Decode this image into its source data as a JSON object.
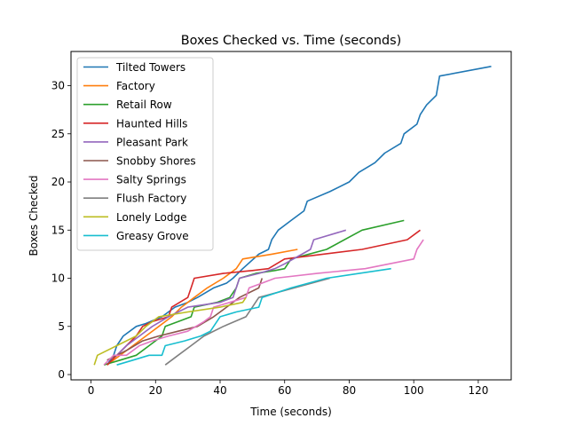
{
  "chart_data": {
    "type": "line",
    "title": "Boxes Checked vs. Time (seconds)",
    "xlabel": "Time (seconds)",
    "ylabel": "Boxes Checked",
    "xlim": [
      -6.2,
      130.2
    ],
    "ylim": [
      -0.55,
      33.55
    ],
    "xticks": [
      0,
      20,
      40,
      60,
      80,
      100,
      120
    ],
    "yticks": [
      0,
      5,
      10,
      15,
      20,
      25,
      30
    ],
    "grid": false,
    "legend_position": "top-left",
    "series": [
      {
        "name": "Tilted Towers",
        "color": "#1f77b4",
        "points": [
          [
            5,
            1
          ],
          [
            7,
            2
          ],
          [
            8,
            3
          ],
          [
            10,
            4
          ],
          [
            14,
            5
          ],
          [
            17,
            5.3
          ],
          [
            22,
            6
          ],
          [
            26,
            7
          ],
          [
            30,
            7.5
          ],
          [
            33,
            8
          ],
          [
            38,
            9
          ],
          [
            42,
            9.5
          ],
          [
            44,
            10
          ],
          [
            47,
            11
          ],
          [
            52,
            12.5
          ],
          [
            55,
            13
          ],
          [
            56,
            14
          ],
          [
            58,
            15
          ],
          [
            62,
            16
          ],
          [
            66,
            17
          ],
          [
            67,
            18
          ],
          [
            74,
            19
          ],
          [
            80,
            20
          ],
          [
            83,
            21
          ],
          [
            88,
            22
          ],
          [
            91,
            23
          ],
          [
            96,
            24
          ],
          [
            97,
            25
          ],
          [
            101,
            26
          ],
          [
            102,
            27
          ],
          [
            104,
            28
          ],
          [
            107,
            29
          ],
          [
            108,
            31
          ],
          [
            124,
            32
          ]
        ]
      },
      {
        "name": "Factory",
        "color": "#ff7f0e",
        "points": [
          [
            5,
            1
          ],
          [
            9,
            2
          ],
          [
            13,
            3
          ],
          [
            17,
            4
          ],
          [
            21,
            5
          ],
          [
            25,
            6
          ],
          [
            28,
            7
          ],
          [
            32,
            8
          ],
          [
            36,
            9
          ],
          [
            41,
            10
          ],
          [
            45,
            11
          ],
          [
            47,
            12
          ],
          [
            56,
            12.5
          ],
          [
            64,
            13
          ]
        ]
      },
      {
        "name": "Retail Row",
        "color": "#2ca02c",
        "points": [
          [
            4,
            1
          ],
          [
            9,
            1.5
          ],
          [
            14,
            2
          ],
          [
            18,
            3
          ],
          [
            22,
            4
          ],
          [
            23,
            5
          ],
          [
            27,
            5.5
          ],
          [
            31,
            6
          ],
          [
            32,
            7
          ],
          [
            39,
            7.5
          ],
          [
            43,
            8
          ],
          [
            45,
            9
          ],
          [
            46,
            10
          ],
          [
            51,
            10.5
          ],
          [
            57,
            10.8
          ],
          [
            60,
            11
          ],
          [
            62,
            12
          ],
          [
            73,
            13
          ],
          [
            84,
            15
          ],
          [
            97,
            16
          ]
        ]
      },
      {
        "name": "Haunted Hills",
        "color": "#d62728",
        "points": [
          [
            5,
            1
          ],
          [
            8,
            2
          ],
          [
            11,
            3
          ],
          [
            14,
            4
          ],
          [
            16,
            5
          ],
          [
            19,
            5.5
          ],
          [
            24,
            6
          ],
          [
            25,
            7
          ],
          [
            30,
            8
          ],
          [
            31,
            9
          ],
          [
            32,
            10
          ],
          [
            41,
            10.5
          ],
          [
            50,
            10.8
          ],
          [
            55,
            11
          ],
          [
            60,
            12
          ],
          [
            84,
            13
          ],
          [
            98,
            14
          ],
          [
            102,
            15
          ]
        ]
      },
      {
        "name": "Pleasant Park",
        "color": "#9467bd",
        "points": [
          [
            5,
            1.5
          ],
          [
            8,
            2
          ],
          [
            11,
            3
          ],
          [
            15,
            4
          ],
          [
            19,
            5
          ],
          [
            24,
            6
          ],
          [
            30,
            7
          ],
          [
            40,
            7.5
          ],
          [
            44,
            8
          ],
          [
            45,
            9
          ],
          [
            46,
            10
          ],
          [
            52,
            10.5
          ],
          [
            57,
            11
          ],
          [
            60,
            11.5
          ],
          [
            68,
            13
          ],
          [
            69,
            14
          ],
          [
            79,
            15
          ]
        ]
      },
      {
        "name": "Snobby Shores",
        "color": "#8c564b",
        "points": [
          [
            5,
            1.5
          ],
          [
            8,
            2
          ],
          [
            11,
            2.5
          ],
          [
            16,
            3.5
          ],
          [
            21,
            4
          ],
          [
            27,
            4.5
          ],
          [
            33,
            5
          ],
          [
            38,
            6
          ],
          [
            42,
            7
          ],
          [
            46,
            8
          ],
          [
            52,
            9
          ],
          [
            53,
            10
          ]
        ]
      },
      {
        "name": "Salty Springs",
        "color": "#e377c2",
        "points": [
          [
            4,
            1
          ],
          [
            7,
            2
          ],
          [
            11,
            2
          ],
          [
            15,
            3
          ],
          [
            19,
            3.5
          ],
          [
            24,
            4
          ],
          [
            30,
            4.5
          ],
          [
            35,
            5.5
          ],
          [
            37,
            6
          ],
          [
            38,
            7
          ],
          [
            43,
            7.5
          ],
          [
            48,
            8
          ],
          [
            49,
            9
          ],
          [
            53,
            9.5
          ],
          [
            57,
            10
          ],
          [
            70,
            10.5
          ],
          [
            85,
            11
          ],
          [
            100,
            12
          ],
          [
            101,
            13
          ],
          [
            103,
            14
          ]
        ]
      },
      {
        "name": "Flush Factory",
        "color": "#7f7f7f",
        "points": [
          [
            23,
            1
          ],
          [
            27,
            2
          ],
          [
            31,
            3
          ],
          [
            35,
            4
          ],
          [
            41,
            5
          ],
          [
            48,
            6
          ],
          [
            52,
            8
          ],
          [
            74,
            10
          ]
        ]
      },
      {
        "name": "Lonely Lodge",
        "color": "#bcbd22",
        "points": [
          [
            1,
            1
          ],
          [
            2,
            2
          ],
          [
            8,
            3
          ],
          [
            14,
            4
          ],
          [
            17,
            5
          ],
          [
            21,
            6
          ],
          [
            30,
            6.5
          ],
          [
            40,
            7
          ],
          [
            47,
            7.5
          ],
          [
            48,
            8
          ]
        ]
      },
      {
        "name": "Greasy Grove",
        "color": "#17becf",
        "points": [
          [
            8,
            1
          ],
          [
            13,
            1.5
          ],
          [
            18,
            2
          ],
          [
            22,
            2
          ],
          [
            23,
            3
          ],
          [
            29,
            3.5
          ],
          [
            34,
            4
          ],
          [
            37,
            4.5
          ],
          [
            40,
            6
          ],
          [
            45,
            6.5
          ],
          [
            52,
            7
          ],
          [
            53,
            8
          ],
          [
            62,
            9
          ],
          [
            73,
            10
          ],
          [
            93,
            11
          ]
        ]
      }
    ]
  }
}
